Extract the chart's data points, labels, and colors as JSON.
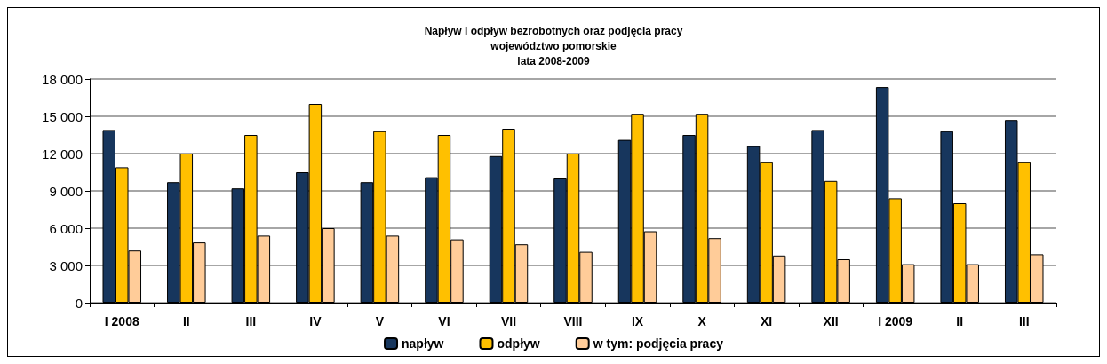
{
  "chart_data": {
    "type": "bar",
    "title": "Napływ i odpływ bezrobotnych oraz podjęcia pracy\nwojewództwo pomorskie\nlata 2008-2009",
    "categories": [
      "I 2008",
      "II",
      "III",
      "IV",
      "V",
      "VI",
      "VII",
      "VIII",
      "IX",
      "X",
      "XI",
      "XII",
      "I 2009",
      "II",
      "III"
    ],
    "series": [
      {
        "name": "napływ",
        "color": "#17365d",
        "values": [
          13900,
          9700,
          9200,
          10500,
          9700,
          10100,
          11800,
          10000,
          13100,
          13500,
          12600,
          13900,
          17350,
          13800,
          14700
        ]
      },
      {
        "name": "odpływ",
        "color": "#ffc000",
        "values": [
          10900,
          12000,
          13500,
          16000,
          13800,
          13500,
          14000,
          12000,
          15200,
          15200,
          11300,
          9800,
          8400,
          8000,
          11300
        ]
      },
      {
        "name": "w tym: podjęcia pracy",
        "color": "#ffcc99",
        "values": [
          4200,
          4850,
          5400,
          6000,
          5400,
          5100,
          4700,
          4100,
          5750,
          5200,
          3800,
          3500,
          3100,
          3100,
          3900
        ]
      }
    ],
    "ylim": [
      0,
      18000
    ],
    "yticks": [
      0,
      {
        "value": 3000,
        "label": "3 000"
      },
      {
        "value": 6000,
        "label": "6 000"
      },
      {
        "value": 9000,
        "label": "9 000"
      },
      {
        "value": 12000,
        "label": "12 000"
      },
      {
        "value": 15000,
        "label": "15 000"
      },
      {
        "value": 18000,
        "label": "18 000"
      }
    ],
    "grid": "y",
    "legend": "bottom"
  }
}
